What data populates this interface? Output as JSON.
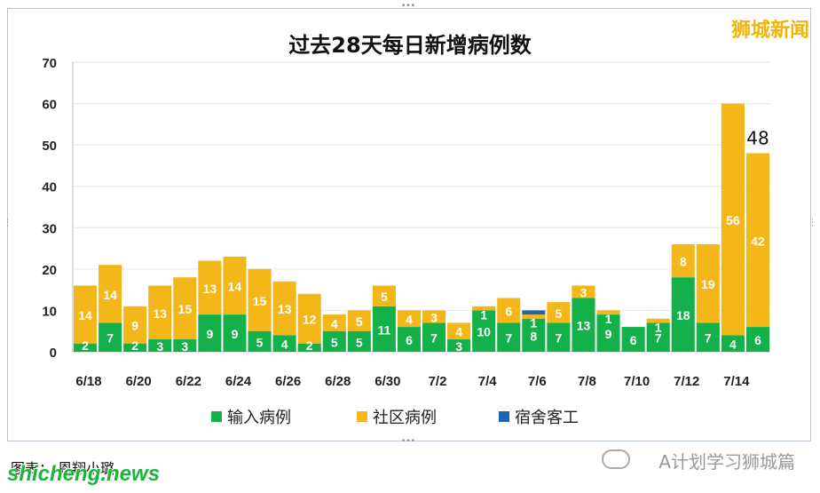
{
  "brand_top_right": "狮城新闻",
  "caption_bottom_left": "图表： 恩翔小璐",
  "watermark_left": "shicheng.news",
  "watermark_right": "A计划学习狮城篇",
  "colors": {
    "imported": "#14b04a",
    "community": "#f4b71a",
    "dormitory": "#1f66b0",
    "brand": "#f2b600"
  },
  "chart_data": {
    "type": "bar",
    "stacked": true,
    "title": "过去28天每日新增病例数",
    "categories": [
      "6/18",
      "6/19",
      "6/20",
      "6/21",
      "6/22",
      "6/23",
      "6/24",
      "6/25",
      "6/26",
      "6/27",
      "6/28",
      "6/29",
      "6/30",
      "7/1",
      "7/2",
      "7/3",
      "7/4",
      "7/5",
      "7/6",
      "7/7",
      "7/8",
      "7/9",
      "7/10",
      "7/11",
      "7/12",
      "7/13",
      "7/14",
      "7/15"
    ],
    "tick_labels": [
      "6/18",
      "6/20",
      "6/22",
      "6/24",
      "6/26",
      "6/28",
      "6/30",
      "7/2",
      "7/4",
      "7/6",
      "7/8",
      "7/10",
      "7/12",
      "7/14"
    ],
    "series": [
      {
        "name": "输入病例",
        "values": [
          2,
          7,
          2,
          3,
          3,
          9,
          9,
          5,
          4,
          2,
          5,
          5,
          11,
          6,
          7,
          3,
          10,
          7,
          8,
          7,
          13,
          9,
          6,
          7,
          18,
          7,
          4,
          6
        ]
      },
      {
        "name": "社区病例",
        "values": [
          14,
          14,
          9,
          13,
          15,
          13,
          14,
          15,
          13,
          12,
          4,
          5,
          5,
          4,
          3,
          4,
          1,
          6,
          1,
          5,
          3,
          1,
          0,
          1,
          8,
          19,
          56,
          42
        ]
      },
      {
        "name": "宿舍客工",
        "values": [
          0,
          0,
          0,
          0,
          0,
          0,
          0,
          0,
          0,
          0,
          0,
          0,
          0,
          0,
          0,
          0,
          0,
          0,
          1,
          0,
          0,
          0,
          0,
          0,
          0,
          0,
          0,
          0
        ]
      }
    ],
    "segment_labels": {
      "imported": [
        "2",
        "7",
        "2",
        "3",
        "3",
        "9",
        "9",
        "5",
        "4",
        "2",
        "5",
        "5",
        "11",
        "6",
        "7",
        "3",
        "10",
        "7",
        "8",
        "7",
        "13",
        "9",
        "6",
        "7",
        "18",
        "7",
        "4",
        "6"
      ],
      "community": [
        "14",
        "14",
        "9",
        "13",
        "15",
        "13",
        "14",
        "15",
        "13",
        "12",
        "4",
        "5",
        "5",
        "4",
        "3",
        "4",
        "1",
        "6",
        "1",
        "5",
        "3",
        "1",
        "",
        "1",
        "8",
        "19",
        "56",
        "42"
      ]
    },
    "total_labels": [
      {
        "category": "7/15",
        "text": "48"
      }
    ],
    "ylim": [
      0,
      70
    ],
    "yticks": [
      "0",
      "10",
      "20",
      "30",
      "40",
      "50",
      "60",
      "70"
    ],
    "grid": true,
    "legend_position": "bottom"
  }
}
